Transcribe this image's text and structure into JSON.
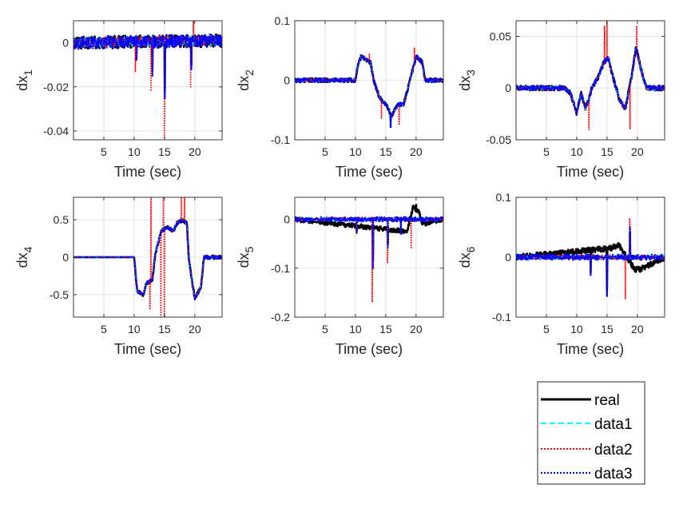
{
  "colors": {
    "real": "#000000",
    "data1": "#00ffff",
    "data2": "#ff0000",
    "data3": "#0000ff",
    "grid": "#dcdcdc",
    "axis": "#262626"
  },
  "legend": {
    "placement": "bottom-right",
    "entries": [
      {
        "name": "real",
        "style": "solid"
      },
      {
        "name": "data1",
        "style": "dashed"
      },
      {
        "name": "data2",
        "style": "dotted"
      },
      {
        "name": "data3",
        "style": "dotted"
      }
    ]
  },
  "chart_data": [
    {
      "type": "line",
      "title": "",
      "xlabel": "Time (sec)",
      "ylabel_base": "dx",
      "ylabel_sub": "1",
      "xlim": [
        0,
        24.5
      ],
      "ylim": [
        -0.044,
        0.01
      ],
      "xticks": [
        5,
        10,
        15,
        20
      ],
      "xticklabels": [
        "5",
        "10",
        "15",
        "20"
      ],
      "yticks": [
        -0.04,
        -0.02,
        0
      ],
      "yticklabels": [
        "-0.04",
        "-0.02",
        "0"
      ],
      "noise": 0.0025,
      "start": 0,
      "key": [
        [
          0,
          0
        ],
        [
          10,
          0.0005
        ],
        [
          24.5,
          0.001
        ]
      ],
      "spikes": [
        [
          10.2,
          -0.013,
          "data2"
        ],
        [
          10.4,
          -0.008,
          "all"
        ],
        [
          12.8,
          -0.022,
          "data2"
        ],
        [
          13.0,
          -0.015,
          "all"
        ],
        [
          15.0,
          -0.043,
          "data2"
        ],
        [
          15.05,
          -0.025,
          "all"
        ],
        [
          19.3,
          -0.02,
          "data2"
        ],
        [
          19.4,
          -0.012,
          "all"
        ],
        [
          19.8,
          0.01,
          "data2"
        ]
      ],
      "series": [
        {
          "name": "real"
        },
        {
          "name": "data1"
        },
        {
          "name": "data2"
        },
        {
          "name": "data3"
        }
      ]
    },
    {
      "type": "line",
      "title": "",
      "xlabel": "Time (sec)",
      "ylabel_base": "dx",
      "ylabel_sub": "2",
      "xlim": [
        0,
        24.5
      ],
      "ylim": [
        -0.1,
        0.1
      ],
      "xticks": [
        5,
        10,
        15,
        20
      ],
      "xticklabels": [
        "5",
        "10",
        "15",
        "20"
      ],
      "yticks": [
        -0.1,
        0,
        0.1
      ],
      "yticklabels": [
        "-0.1",
        "0",
        "0.1"
      ],
      "noise": 0.003,
      "start": 0,
      "key": [
        [
          0,
          0
        ],
        [
          10,
          0
        ],
        [
          10.5,
          0.03
        ],
        [
          11,
          0.04
        ],
        [
          12.5,
          0.03
        ],
        [
          13,
          0.0
        ],
        [
          14,
          -0.03
        ],
        [
          15,
          -0.04
        ],
        [
          16,
          -0.06
        ],
        [
          17,
          -0.04
        ],
        [
          18,
          -0.04
        ],
        [
          19,
          0.0
        ],
        [
          20,
          0.04
        ],
        [
          21,
          0.03
        ],
        [
          21.5,
          0
        ],
        [
          24.5,
          0
        ]
      ],
      "spikes": [
        [
          12.3,
          0.045,
          "data2"
        ],
        [
          14.3,
          -0.065,
          "data2"
        ],
        [
          15.8,
          -0.08,
          "all"
        ],
        [
          17.2,
          -0.075,
          "data2"
        ],
        [
          19.7,
          0.055,
          "data2"
        ]
      ],
      "series": [
        {
          "name": "real"
        },
        {
          "name": "data1"
        },
        {
          "name": "data2"
        },
        {
          "name": "data3"
        }
      ]
    },
    {
      "type": "line",
      "title": "",
      "xlabel": "Time (sec)",
      "ylabel_base": "dx",
      "ylabel_sub": "3",
      "xlim": [
        0,
        24.5
      ],
      "ylim": [
        -0.05,
        0.065
      ],
      "xticks": [
        5,
        10,
        15,
        20
      ],
      "xticklabels": [
        "5",
        "10",
        "15",
        "20"
      ],
      "yticks": [
        -0.05,
        0,
        0.05
      ],
      "yticklabels": [
        "-0.05",
        "0",
        "0.05"
      ],
      "noise": 0.002,
      "start": 0,
      "key": [
        [
          0,
          0
        ],
        [
          8,
          0
        ],
        [
          9,
          -0.005
        ],
        [
          10,
          -0.025
        ],
        [
          10.7,
          -0.005
        ],
        [
          11.5,
          -0.02
        ],
        [
          12.5,
          0.0
        ],
        [
          13.5,
          0.01
        ],
        [
          14.5,
          0.025
        ],
        [
          15.2,
          0.03
        ],
        [
          16,
          0.01
        ],
        [
          17,
          -0.01
        ],
        [
          18,
          -0.02
        ],
        [
          19,
          0.01
        ],
        [
          19.8,
          0.04
        ],
        [
          20.5,
          0.02
        ],
        [
          21.5,
          0
        ],
        [
          24.5,
          0
        ]
      ],
      "spikes": [
        [
          12.0,
          -0.04,
          "data2"
        ],
        [
          14.6,
          0.06,
          "data2"
        ],
        [
          15.0,
          0.065,
          "data2"
        ],
        [
          18.8,
          -0.04,
          "data2"
        ],
        [
          19.9,
          0.06,
          "data2"
        ]
      ],
      "series": [
        {
          "name": "real"
        },
        {
          "name": "data1"
        },
        {
          "name": "data2"
        },
        {
          "name": "data3"
        }
      ]
    },
    {
      "type": "line",
      "title": "",
      "xlabel": "Time (sec)",
      "ylabel_base": "dx",
      "ylabel_sub": "4",
      "xlim": [
        0,
        24.5
      ],
      "ylim": [
        -0.8,
        0.8
      ],
      "xticks": [
        5,
        10,
        15,
        20
      ],
      "xticklabels": [
        "5",
        "10",
        "15",
        "20"
      ],
      "yticks": [
        -0.5,
        0,
        0.5
      ],
      "yticklabels": [
        "-0.5",
        "0",
        "0.5"
      ],
      "noise": 0.02,
      "start": 10.3,
      "key": [
        [
          0,
          0
        ],
        [
          10,
          0
        ],
        [
          10.5,
          -0.45
        ],
        [
          11.5,
          -0.5
        ],
        [
          12,
          -0.35
        ],
        [
          13,
          -0.3
        ],
        [
          13.5,
          0.05
        ],
        [
          14.5,
          0.35
        ],
        [
          15.5,
          0.4
        ],
        [
          16.5,
          0.35
        ],
        [
          17,
          0.45
        ],
        [
          18,
          0.5
        ],
        [
          18.7,
          0.45
        ],
        [
          19,
          0.0
        ],
        [
          19.5,
          -0.3
        ],
        [
          20,
          -0.55
        ],
        [
          21,
          -0.4
        ],
        [
          21.5,
          0
        ],
        [
          24.5,
          0
        ]
      ],
      "spikes": [
        [
          12.6,
          -0.7,
          "data2"
        ],
        [
          12.8,
          0.8,
          "data2"
        ],
        [
          14.4,
          -0.8,
          "data2"
        ],
        [
          14.8,
          0.8,
          "data2"
        ],
        [
          15.0,
          -0.8,
          "data2"
        ],
        [
          17.8,
          0.8,
          "data2"
        ],
        [
          18.3,
          0.8,
          "data2"
        ]
      ],
      "series": [
        {
          "name": "real"
        },
        {
          "name": "data1"
        },
        {
          "name": "data2"
        },
        {
          "name": "data3"
        }
      ]
    },
    {
      "type": "line",
      "title": "",
      "xlabel": "Time (sec)",
      "ylabel_base": "dx",
      "ylabel_sub": "5",
      "xlim": [
        0,
        24.5
      ],
      "ylim": [
        -0.2,
        0.045
      ],
      "xticks": [
        5,
        10,
        15,
        20
      ],
      "xticklabels": [
        "5",
        "10",
        "15",
        "20"
      ],
      "yticks": [
        -0.2,
        -0.1,
        0
      ],
      "yticklabels": [
        "-0.2",
        "-0.1",
        "0"
      ],
      "noise": 0.004,
      "start": 0,
      "key": [
        [
          0,
          0
        ],
        [
          10,
          0
        ],
        [
          24.5,
          0
        ]
      ],
      "spikes": [
        [
          10.2,
          -0.03,
          "all"
        ],
        [
          12.8,
          -0.17,
          "data2"
        ],
        [
          12.9,
          -0.1,
          "all"
        ],
        [
          15.3,
          -0.09,
          "data2"
        ],
        [
          15.35,
          -0.06,
          "all"
        ],
        [
          17.5,
          -0.03,
          "all"
        ],
        [
          19.2,
          -0.06,
          "data2"
        ],
        [
          20.0,
          0.03,
          "real"
        ]
      ],
      "realdev": [
        [
          18.5,
          -0.025
        ],
        [
          19.5,
          0.025
        ],
        [
          20.5,
          0.015
        ],
        [
          21,
          -0.01
        ]
      ],
      "series": [
        {
          "name": "real"
        },
        {
          "name": "data1"
        },
        {
          "name": "data2"
        },
        {
          "name": "data3"
        }
      ]
    },
    {
      "type": "line",
      "title": "",
      "xlabel": "Time (sec)",
      "ylabel_base": "dx",
      "ylabel_sub": "6",
      "xlim": [
        0,
        24.5
      ],
      "ylim": [
        -0.1,
        0.1
      ],
      "xticks": [
        5,
        10,
        15,
        20
      ],
      "xticklabels": [
        "5",
        "10",
        "15",
        "20"
      ],
      "yticks": [
        -0.1,
        0,
        0.1
      ],
      "yticklabels": [
        "-0.1",
        "0",
        "0.1"
      ],
      "noise": 0.004,
      "start": 0,
      "key": [
        [
          0,
          0
        ],
        [
          24.5,
          0
        ]
      ],
      "spikes": [
        [
          12.3,
          -0.03,
          "all"
        ],
        [
          15.0,
          -0.065,
          "all"
        ],
        [
          18.0,
          -0.07,
          "data2"
        ],
        [
          18.7,
          0.065,
          "data2"
        ],
        [
          18.8,
          0.05,
          "all"
        ]
      ],
      "realdev": [
        [
          15.5,
          0.015
        ],
        [
          17,
          0.02
        ],
        [
          19.5,
          -0.02
        ],
        [
          20.5,
          -0.02
        ]
      ],
      "series": [
        {
          "name": "real"
        },
        {
          "name": "data1"
        },
        {
          "name": "data2"
        },
        {
          "name": "data3"
        }
      ]
    }
  ]
}
